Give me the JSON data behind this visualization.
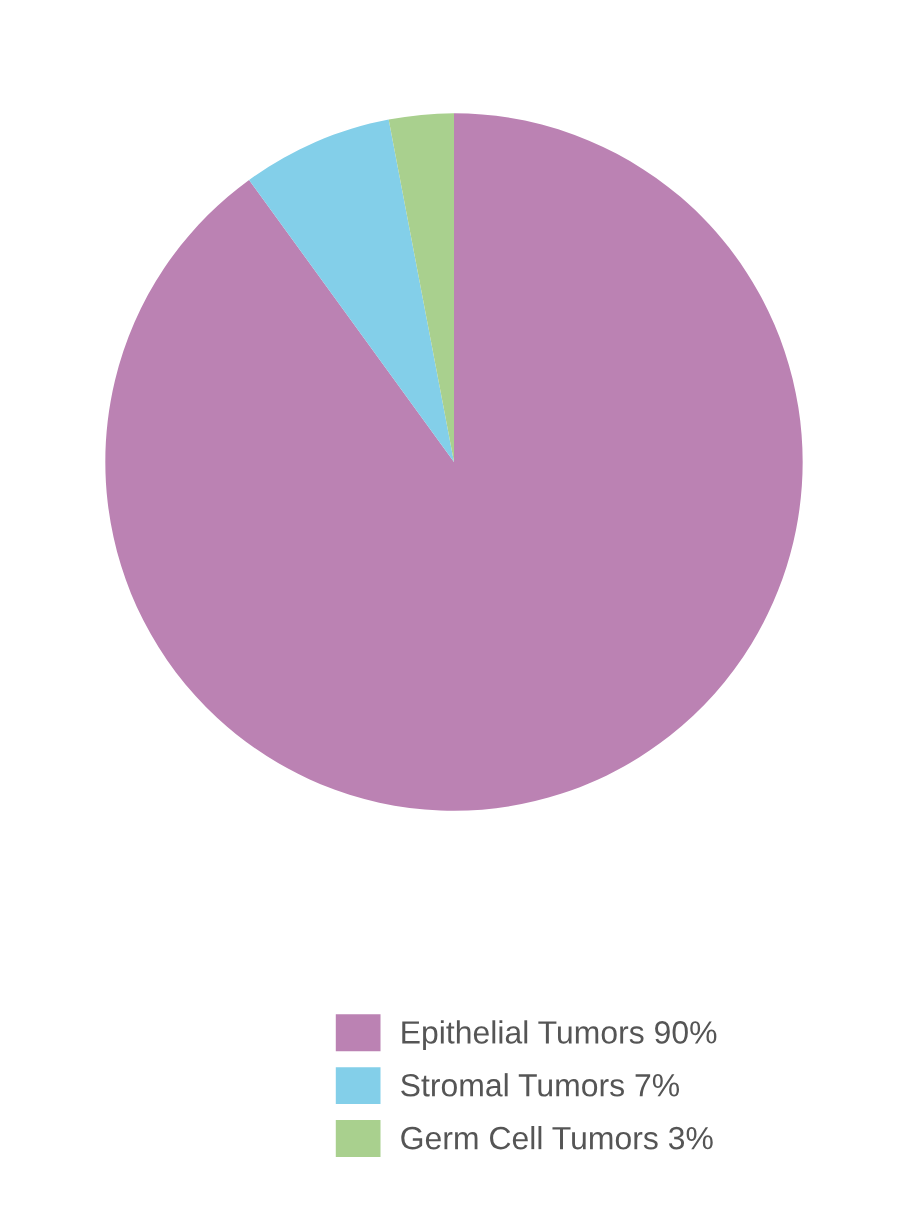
{
  "chart_data": {
    "type": "pie",
    "categories": [
      "Epithelial Tumors 90%",
      "Stromal Tumors 7%",
      "Germ Cell Tumors 3%"
    ],
    "values": [
      90,
      7,
      3
    ],
    "colors": [
      "#bb82b3",
      "#83cfe9",
      "#a9d08e"
    ],
    "legend": "bottom"
  }
}
